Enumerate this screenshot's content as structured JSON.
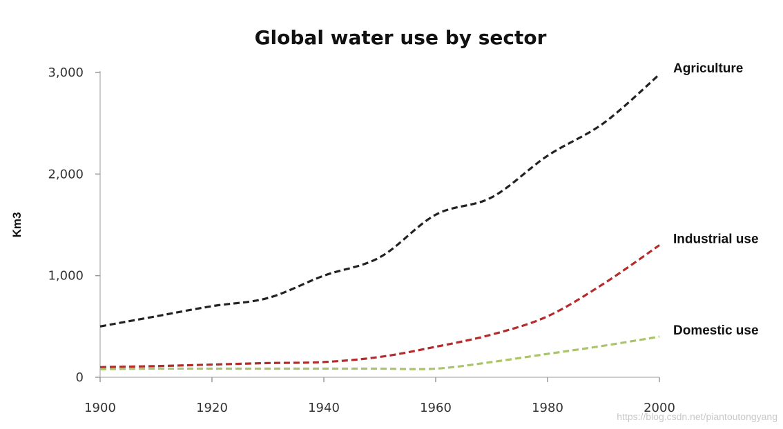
{
  "chart_data": {
    "type": "line",
    "title": "Global water use by sector",
    "xlabel": "",
    "ylabel": "Km3",
    "xlim": [
      1900,
      2000
    ],
    "ylim": [
      0,
      3000
    ],
    "x_ticks": [
      1900,
      1920,
      1940,
      1960,
      1980,
      2000
    ],
    "x_tick_labels": [
      "1900",
      "1920",
      "1940",
      "1960",
      "1980",
      "2000"
    ],
    "y_ticks": [
      0,
      1000,
      2000,
      3000
    ],
    "y_tick_labels": [
      "0",
      "1,000",
      "2,000",
      "3,000"
    ],
    "grid": false,
    "legend": "inline labels at line ends",
    "series": [
      {
        "name": "Agriculture",
        "color": "#222222",
        "x": [
          1900,
          1910,
          1920,
          1930,
          1940,
          1950,
          1960,
          1970,
          1980,
          1990,
          2000
        ],
        "values": [
          500,
          600,
          700,
          780,
          1000,
          1180,
          1600,
          1770,
          2180,
          2500,
          2980
        ]
      },
      {
        "name": "Industrial use",
        "color": "#b52a2a",
        "x": [
          1900,
          1910,
          1920,
          1930,
          1940,
          1950,
          1960,
          1970,
          1980,
          1990,
          2000
        ],
        "values": [
          100,
          110,
          125,
          140,
          150,
          200,
          300,
          420,
          600,
          920,
          1300
        ]
      },
      {
        "name": "Domestic use",
        "color": "#a9c46a",
        "x": [
          1900,
          1910,
          1920,
          1930,
          1940,
          1950,
          1960,
          1970,
          1980,
          1990,
          2000
        ],
        "values": [
          80,
          85,
          85,
          85,
          85,
          85,
          85,
          150,
          230,
          310,
          400
        ]
      }
    ]
  },
  "watermark": "https://blog.csdn.net/piantoutongyang"
}
